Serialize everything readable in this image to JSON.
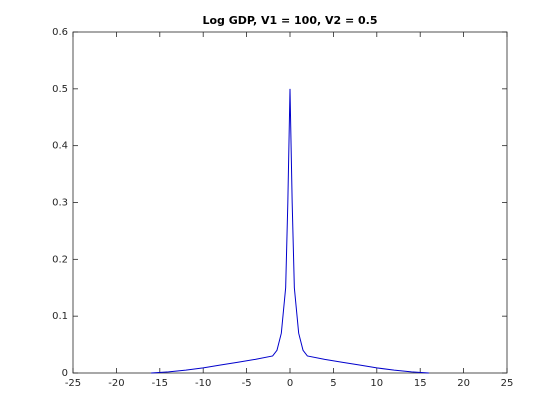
{
  "chart_data": {
    "type": "line",
    "title": "Log GDP, V1 = 100, V2 = 0.5",
    "x": [
      -16,
      -14,
      -12,
      -10,
      -8,
      -6,
      -4,
      -2,
      -1.5,
      -1,
      -0.5,
      -0.25,
      0,
      0.25,
      0.5,
      1,
      1.5,
      2,
      4,
      6,
      8,
      10,
      12,
      14,
      16
    ],
    "series": [
      {
        "color": "#0000cc",
        "values": [
          0,
          0.002,
          0.005,
          0.009,
          0.014,
          0.019,
          0.024,
          0.03,
          0.04,
          0.07,
          0.15,
          0.3,
          0.5,
          0.3,
          0.15,
          0.07,
          0.04,
          0.03,
          0.024,
          0.019,
          0.014,
          0.009,
          0.005,
          0.002,
          0
        ]
      }
    ],
    "xlim": [
      -25,
      25
    ],
    "xticks": [
      -25,
      -20,
      -15,
      -10,
      -5,
      0,
      5,
      10,
      15,
      20,
      25
    ],
    "ylim": [
      0,
      0.6
    ],
    "yticks": [
      0,
      0.1,
      0.2,
      0.3,
      0.4,
      0.5,
      0.6
    ]
  }
}
